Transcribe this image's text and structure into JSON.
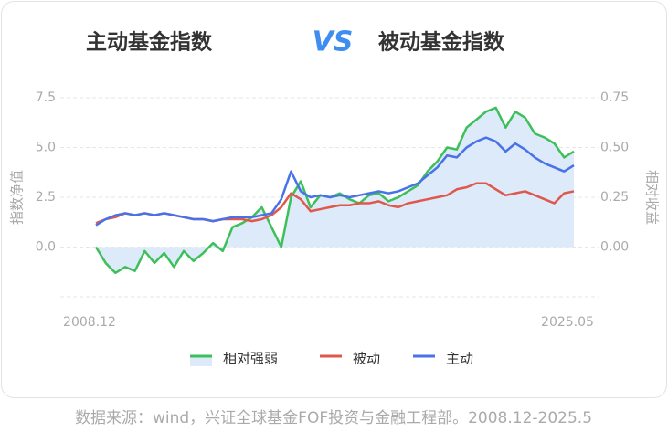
{
  "chart_data": {
    "type": "line",
    "title": [
      "主动基金指数",
      "VS",
      "被动基金指数"
    ],
    "y_label": "指数净值",
    "y2_label": "相对收益",
    "source": "数据来源：wind，兴证全球基金FOF投资与金融工程部。2008.12-2025.5",
    "categories": [
      "2008.12",
      null,
      null,
      null,
      null,
      null,
      null,
      null,
      null,
      null,
      null,
      null,
      null,
      null,
      null,
      null,
      null,
      null,
      null,
      null,
      null,
      null,
      null,
      null,
      null,
      null,
      null,
      null,
      null,
      null,
      null,
      null,
      null,
      null,
      null,
      null,
      null,
      null,
      null,
      null,
      null,
      null,
      null,
      null,
      null,
      null,
      null,
      null,
      null,
      "2025.05"
    ],
    "ylim": [
      -2.5,
      7.5
    ],
    "yticks": [
      {
        "value": 0,
        "label": "0.0"
      },
      {
        "value": 2.5,
        "label": "2.5"
      },
      {
        "value": 5,
        "label": "5.0"
      },
      {
        "value": 7.5,
        "label": "7.5"
      }
    ],
    "y2lim": [
      -0.25,
      0.75
    ],
    "y2ticks": [
      {
        "value": 0,
        "label": "0.00"
      },
      {
        "value": 0.25,
        "label": "0.25"
      },
      {
        "value": 0.5,
        "label": "0.50"
      },
      {
        "value": 0.75,
        "label": "0.75"
      }
    ],
    "grid": true,
    "area_color": "#dceaf9",
    "series": [
      {
        "name": "相对强弱",
        "color": "#3dbf5a",
        "axis": "y2",
        "area": true,
        "values": [
          0,
          -0.08,
          -0.13,
          -0.1,
          -0.12,
          -0.02,
          -0.08,
          -0.03,
          -0.1,
          -0.02,
          -0.07,
          -0.03,
          0.02,
          -0.02,
          0.1,
          0.12,
          0.15,
          0.2,
          0.1,
          0.0,
          0.25,
          0.33,
          0.2,
          0.26,
          0.25,
          0.27,
          0.24,
          0.22,
          0.26,
          0.27,
          0.23,
          0.25,
          0.28,
          0.31,
          0.38,
          0.43,
          0.5,
          0.49,
          0.6,
          0.64,
          0.68,
          0.7,
          0.6,
          0.68,
          0.65,
          0.57,
          0.55,
          0.52,
          0.45,
          0.48
        ]
      },
      {
        "name": "被动",
        "color": "#e0574c",
        "values": [
          1.2,
          1.4,
          1.5,
          1.7,
          1.6,
          1.7,
          1.6,
          1.7,
          1.6,
          1.5,
          1.4,
          1.4,
          1.3,
          1.4,
          1.4,
          1.4,
          1.3,
          1.4,
          1.6,
          2.0,
          2.7,
          2.4,
          1.8,
          1.9,
          2.0,
          2.1,
          2.1,
          2.2,
          2.2,
          2.3,
          2.1,
          2.0,
          2.2,
          2.3,
          2.4,
          2.5,
          2.6,
          2.9,
          3.0,
          3.2,
          3.2,
          2.9,
          2.6,
          2.7,
          2.8,
          2.6,
          2.4,
          2.2,
          2.7,
          2.8
        ]
      },
      {
        "name": "主动",
        "color": "#4a72e8",
        "values": [
          1.1,
          1.4,
          1.6,
          1.7,
          1.6,
          1.7,
          1.6,
          1.7,
          1.6,
          1.5,
          1.4,
          1.4,
          1.3,
          1.4,
          1.5,
          1.5,
          1.5,
          1.6,
          1.7,
          2.4,
          3.8,
          2.8,
          2.5,
          2.6,
          2.5,
          2.6,
          2.5,
          2.6,
          2.7,
          2.8,
          2.7,
          2.8,
          3.0,
          3.2,
          3.6,
          4.0,
          4.6,
          4.5,
          5.0,
          5.3,
          5.5,
          5.3,
          4.8,
          5.2,
          4.9,
          4.5,
          4.2,
          4.0,
          3.8,
          4.1
        ]
      }
    ]
  }
}
